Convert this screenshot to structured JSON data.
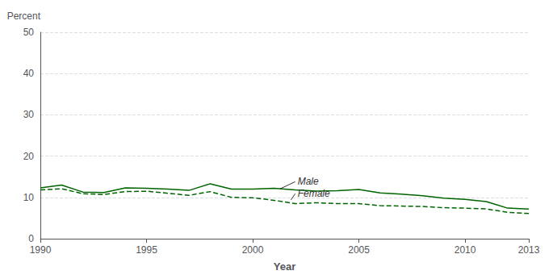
{
  "chart_data": {
    "type": "line",
    "x": [
      1990,
      1991,
      1992,
      1993,
      1994,
      1995,
      1996,
      1997,
      1998,
      1999,
      2000,
      2001,
      2002,
      2003,
      2004,
      2005,
      2006,
      2007,
      2008,
      2009,
      2010,
      2011,
      2012,
      2013
    ],
    "series": [
      {
        "name": "Male",
        "color": "#006400",
        "line_style": "solid",
        "values": [
          12.3,
          13.0,
          11.3,
          11.2,
          12.3,
          12.2,
          12.0,
          11.7,
          13.3,
          12.0,
          12.0,
          12.2,
          11.8,
          11.5,
          11.6,
          11.9,
          11.1,
          10.8,
          10.4,
          9.8,
          9.5,
          9.0,
          7.4,
          7.2
        ]
      },
      {
        "name": "Female",
        "color": "#006400",
        "line_style": "dashed",
        "values": [
          11.8,
          12.1,
          10.9,
          10.7,
          11.4,
          11.5,
          11.0,
          10.5,
          11.4,
          10.0,
          9.9,
          9.3,
          8.5,
          8.7,
          8.5,
          8.5,
          8.0,
          7.9,
          7.8,
          7.5,
          7.4,
          7.2,
          6.4,
          6.1
        ]
      }
    ],
    "xlabel": "Year",
    "ylabel": "Percent",
    "xlim": [
      1990,
      2013
    ],
    "xticks": [
      1990,
      1995,
      2000,
      2005,
      2010,
      2013
    ],
    "ylim": [
      0,
      50
    ],
    "yticks": [
      0,
      10,
      20,
      30,
      40,
      50
    ],
    "grid": true,
    "annotations": [
      {
        "text": "Male",
        "xy": [
          2001.3,
          12.1
        ],
        "xytext": [
          2002.0,
          13.8
        ]
      },
      {
        "text": "Female",
        "xy": [
          2001.8,
          9.4
        ],
        "xytext": [
          2002.0,
          10.9
        ]
      }
    ]
  }
}
